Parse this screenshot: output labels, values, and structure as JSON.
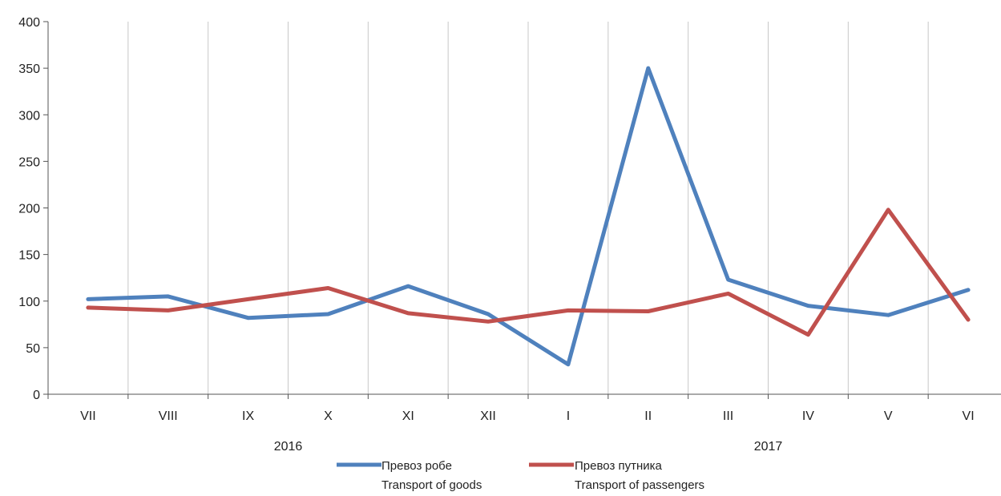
{
  "chart_data": {
    "type": "line",
    "categories": [
      "VII",
      "VIII",
      "IX",
      "X",
      "XI",
      "XII",
      "I",
      "II",
      "III",
      "IV",
      "V",
      "VI"
    ],
    "year_groups": [
      {
        "label": "2016",
        "from": 0,
        "to": 5
      },
      {
        "label": "2017",
        "from": 6,
        "to": 11
      }
    ],
    "ylim": [
      0,
      400
    ],
    "yticks": [
      0,
      50,
      100,
      150,
      200,
      250,
      300,
      350,
      400
    ],
    "grid": "vertical",
    "legend_position": "bottom",
    "series": [
      {
        "name": "Превоз робе",
        "name_en": "Transport of goods",
        "color": "#4F81BD",
        "values": [
          102,
          105,
          82,
          86,
          116,
          86,
          32,
          350,
          123,
          95,
          85,
          112
        ]
      },
      {
        "name": "Превоз путника",
        "name_en": "Transport of passengers",
        "color": "#C0504D",
        "values": [
          93,
          90,
          102,
          114,
          87,
          78,
          90,
          89,
          108,
          64,
          198,
          80
        ]
      }
    ]
  }
}
